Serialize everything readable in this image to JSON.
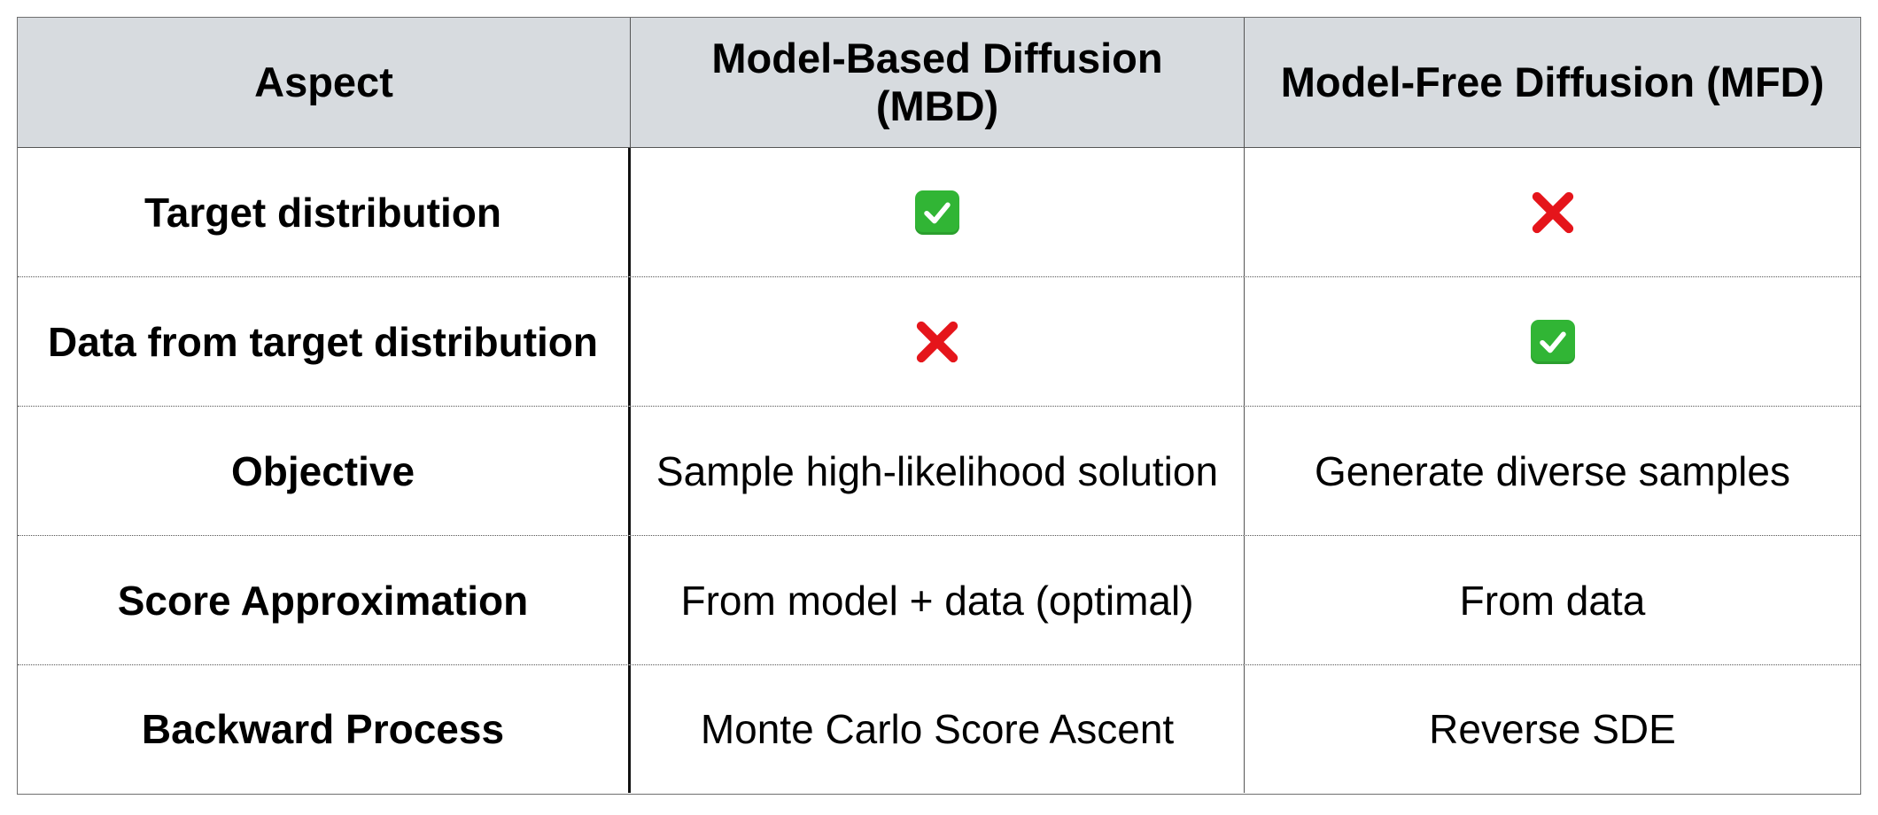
{
  "table": {
    "headers": {
      "aspect": "Aspect",
      "mbd": "Model-Based Diffusion (MBD)",
      "mfd": "Model-Free Diffusion (MFD)"
    },
    "rows": [
      {
        "aspect": "Target distribution",
        "mbd_icon": "check-mark-icon",
        "mfd_icon": "cross-mark-icon"
      },
      {
        "aspect": "Data from target distribution",
        "mbd_icon": "cross-mark-icon",
        "mfd_icon": "check-mark-icon"
      },
      {
        "aspect": "Objective",
        "mbd": "Sample high-likelihood solution",
        "mfd": "Generate diverse samples"
      },
      {
        "aspect": "Score Approximation",
        "mbd": "From model + data (optimal)",
        "mfd": "From data"
      },
      {
        "aspect": "Backward Process",
        "mbd": "Monte Carlo Score Ascent",
        "mfd": "Reverse SDE"
      }
    ]
  },
  "colors": {
    "header_background": "#d7dbdf",
    "check_green": "#31b535",
    "cross_red": "#e5151b"
  }
}
